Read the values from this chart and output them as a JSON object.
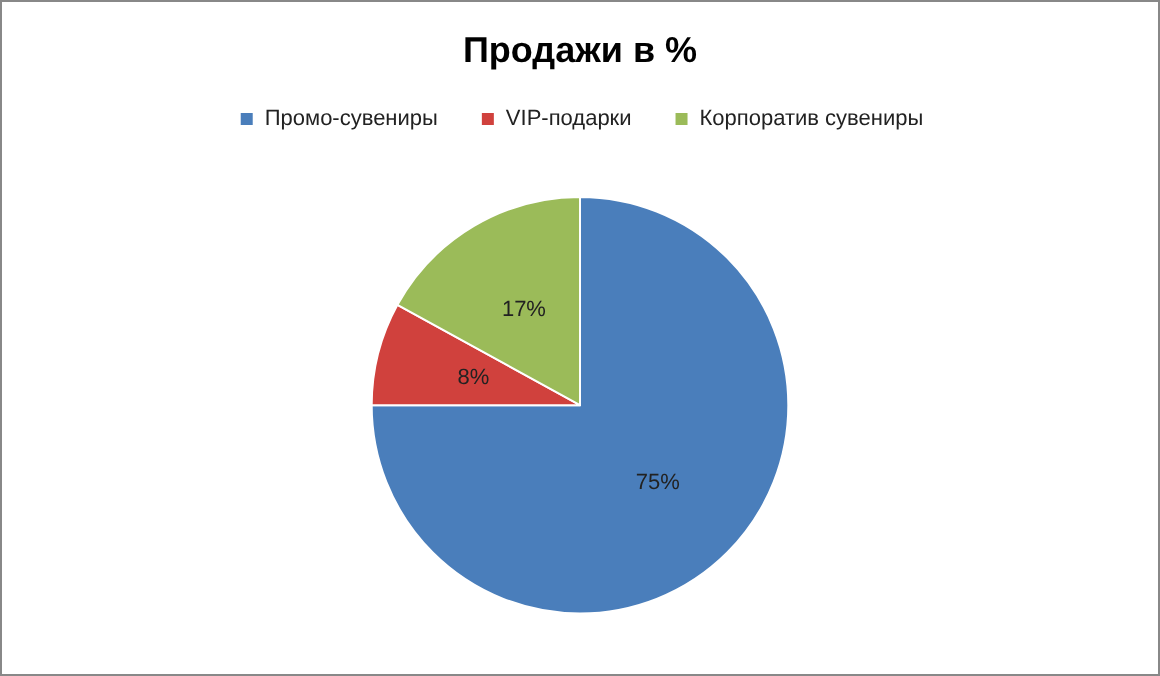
{
  "chart_data": {
    "type": "pie",
    "title": "Продажи в %",
    "categories": [
      "Промо-сувениры",
      "VIP-подарки",
      "Корпоратив сувениры"
    ],
    "values": [
      75,
      8,
      17
    ],
    "value_labels": [
      "75%",
      "8%",
      "17%"
    ],
    "colors": [
      "#4a7ebb",
      "#d0413d",
      "#9bbb59"
    ],
    "legend": "top"
  }
}
